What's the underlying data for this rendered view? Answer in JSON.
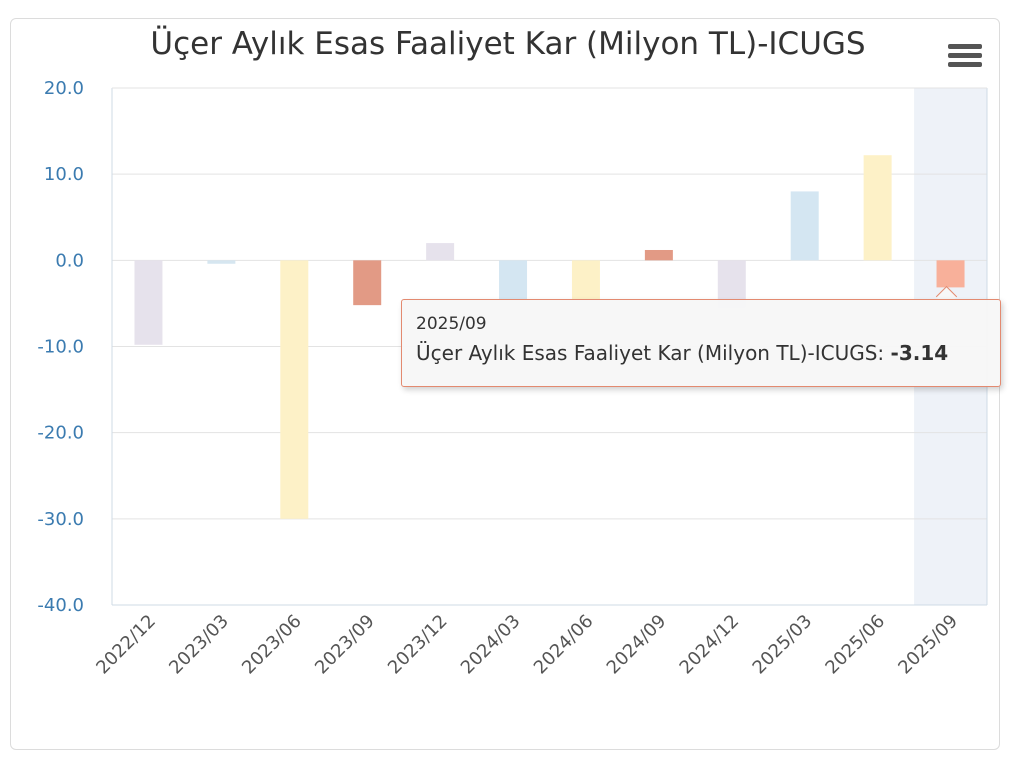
{
  "chart_data": {
    "type": "bar",
    "title": "Üçer Aylık Esas Faaliyet Kar (Milyon TL)-ICUGS",
    "categories": [
      "2022/12",
      "2023/03",
      "2023/06",
      "2023/09",
      "2023/12",
      "2024/03",
      "2024/06",
      "2024/09",
      "2024/12",
      "2025/03",
      "2025/06",
      "2025/09"
    ],
    "series": [
      {
        "values": [
          -9.8,
          -0.4,
          -30.0,
          -5.2,
          2.0,
          -4.6,
          -4.6,
          1.2,
          -5.5,
          8.0,
          12.2,
          -3.14
        ]
      }
    ],
    "ylim": [
      -40,
      20
    ],
    "yticks": [
      "20.0",
      "10.0",
      "0.0",
      "-10.0",
      "-20.0",
      "-30.0",
      "-40.0"
    ],
    "bar_colors": [
      "#e6e2ec",
      "#d6e6f0",
      "#fdf1c7",
      "#e29a85",
      "#e6e2ec",
      "#d4e6f2",
      "#fdf1c7",
      "#e29a85",
      "#e6e2ec",
      "#d4e6f2",
      "#fdf1c7",
      "#f8b09a"
    ],
    "highlight_index": 11,
    "grid": true,
    "legend": "none"
  },
  "tooltip": {
    "x_label": "2025/09",
    "series_label": "Üçer Aylık Esas Faaliyet Kar (Milyon TL)-ICUGS: ",
    "value_label": "-3.14"
  }
}
